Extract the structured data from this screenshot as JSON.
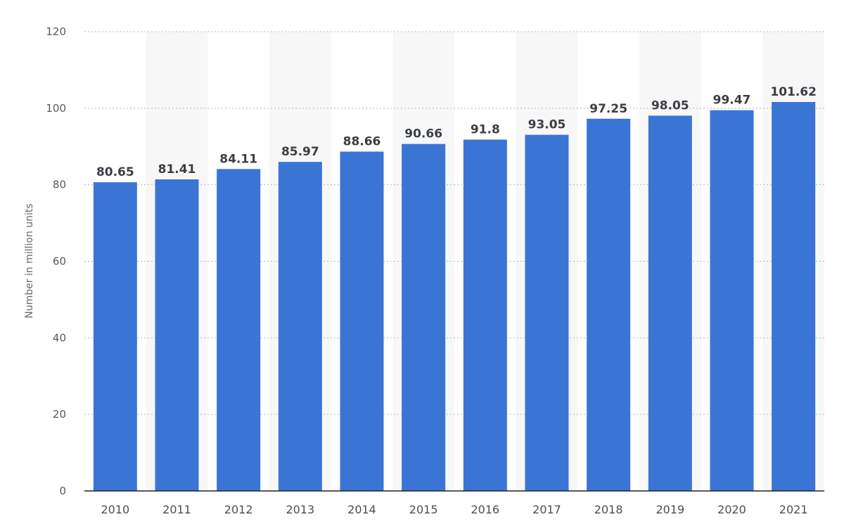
{
  "chart_data": {
    "type": "bar",
    "categories": [
      "2010",
      "2011",
      "2012",
      "2013",
      "2014",
      "2015",
      "2016",
      "2017",
      "2018",
      "2019",
      "2020",
      "2021"
    ],
    "values": [
      80.65,
      81.41,
      84.11,
      85.97,
      88.66,
      90.66,
      91.8,
      93.05,
      97.25,
      98.05,
      99.47,
      101.62
    ],
    "value_labels": [
      "80.65",
      "81.41",
      "84.11",
      "85.97",
      "88.66",
      "90.66",
      "91.8",
      "93.05",
      "97.25",
      "98.05",
      "99.47",
      "101.62"
    ],
    "title": "",
    "xlabel": "",
    "ylabel": "Number in million units",
    "ylim": [
      0,
      120
    ],
    "yticks": [
      "0",
      "20",
      "40",
      "60",
      "80",
      "100",
      "120"
    ],
    "grid": true,
    "bar_color": "#3a75d6",
    "band_color": "#f7f7f7"
  }
}
